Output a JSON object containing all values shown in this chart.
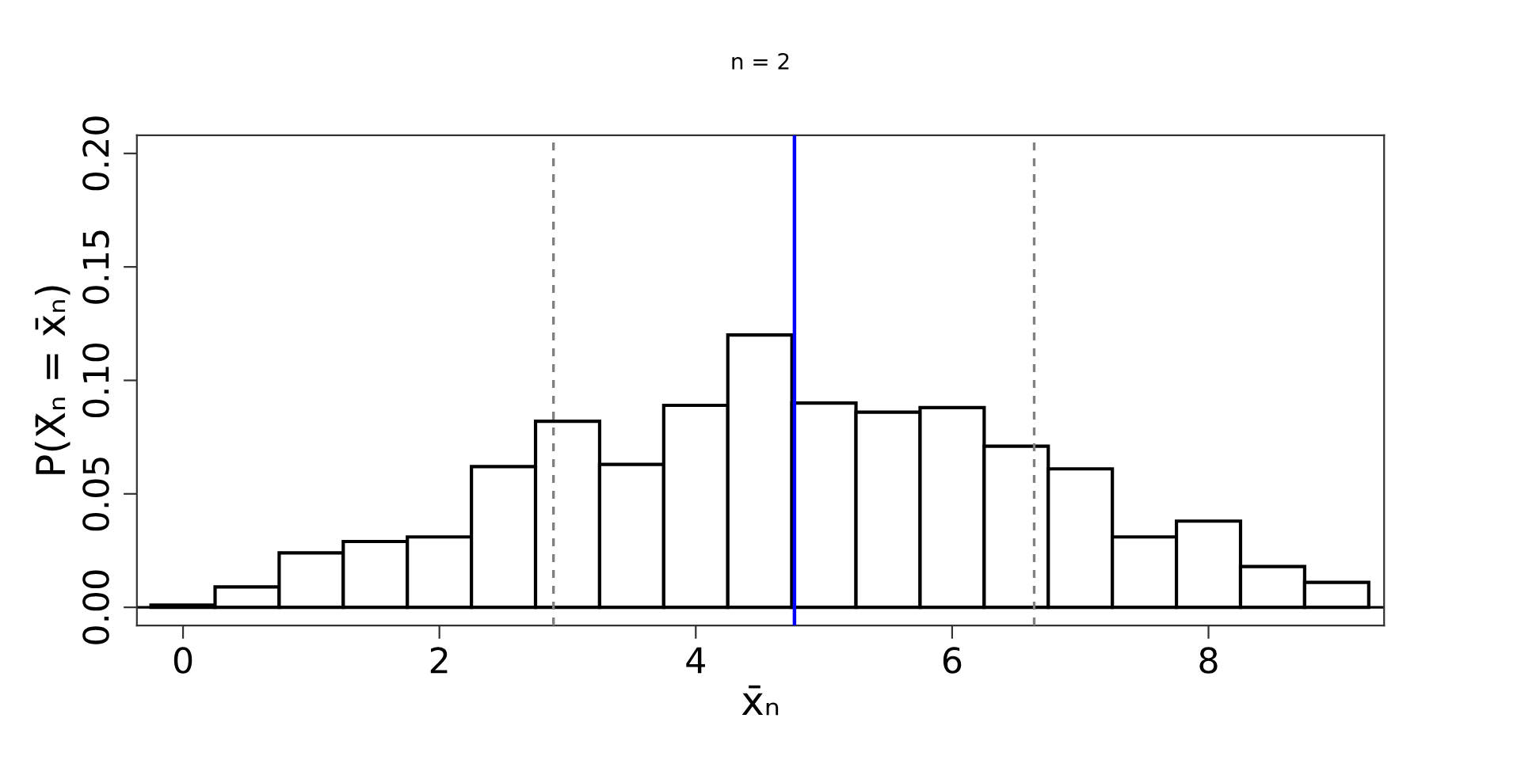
{
  "chart_data": {
    "type": "histogram",
    "title": "n = 2",
    "xlabel": "x̄ₙ",
    "ylabel": "P(X̄ₙ = x̄ₙ)",
    "bins": [
      -0.25,
      0.25,
      0.75,
      1.25,
      1.75,
      2.25,
      2.75,
      3.25,
      3.75,
      4.25,
      4.75,
      5.25,
      5.75,
      6.25,
      6.75,
      7.25,
      7.75,
      8.25,
      8.75,
      9.25
    ],
    "values": [
      0.001,
      0.009,
      0.024,
      0.029,
      0.031,
      0.062,
      0.082,
      0.063,
      0.089,
      0.12,
      0.09,
      0.086,
      0.088,
      0.071,
      0.061,
      0.031,
      0.038,
      0.018,
      0.011
    ],
    "color": "#ffffff",
    "xlim": [
      -0.36,
      9.37
    ],
    "ylim": [
      -0.008,
      0.208
    ],
    "xticks": [
      0,
      2,
      4,
      6,
      8
    ],
    "yticks": [
      {
        "value": 0,
        "label": "0.00"
      },
      {
        "value": 0.05,
        "label": "0.05"
      },
      {
        "value": 0.1,
        "label": "0.10"
      },
      {
        "value": 0.15,
        "label": "0.15"
      },
      {
        "value": 0.2,
        "label": "0.20"
      }
    ],
    "ref_lines": [
      {
        "axis": "y",
        "value": 0,
        "color": "#000000",
        "line_style": "solid"
      },
      {
        "axis": "x",
        "value": 2.89,
        "color": "#808080",
        "line_style": "dashed"
      },
      {
        "axis": "x",
        "value": 4.77,
        "color": "#0000ff",
        "line_style": "solid"
      },
      {
        "axis": "x",
        "value": 6.64,
        "color": "#808080",
        "line_style": "dashed"
      }
    ],
    "grid": false,
    "legend": false
  }
}
